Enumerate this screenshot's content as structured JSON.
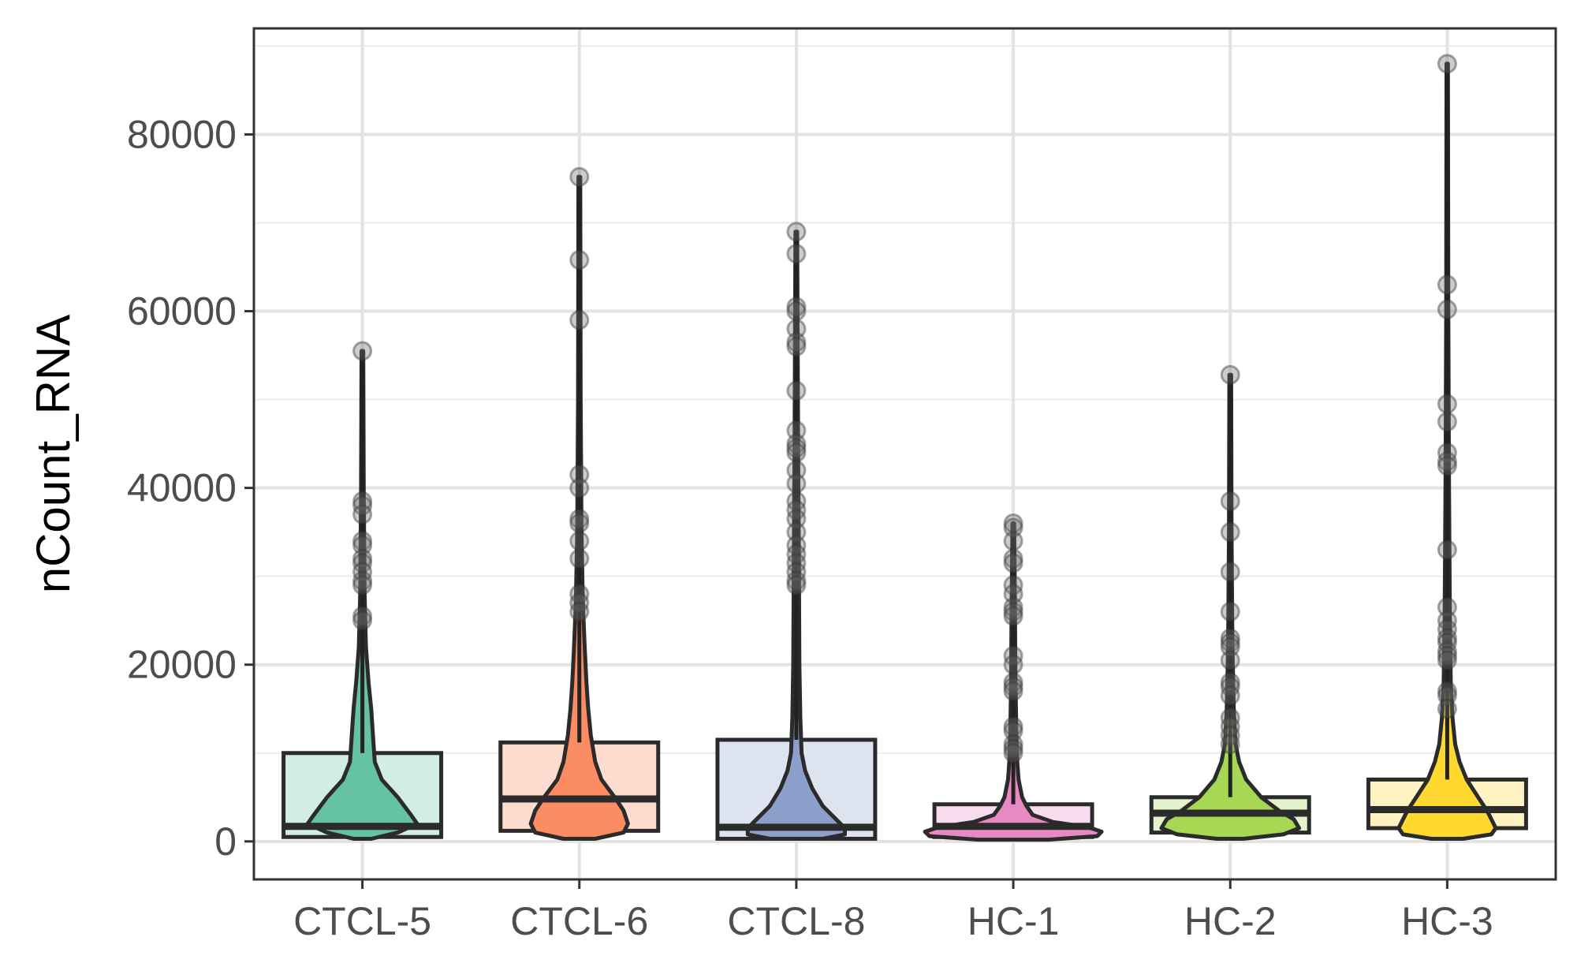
{
  "chart_data": {
    "type": "violin",
    "xlabel": "",
    "ylabel": "nCount_RNA",
    "ylim": [
      -4300,
      92000
    ],
    "yticks": [
      0,
      20000,
      40000,
      60000,
      80000
    ],
    "ytick_labels": [
      "0",
      "20000",
      "40000",
      "60000",
      "80000"
    ],
    "grid": true,
    "legend": "none",
    "categories": [
      "CTCL-5",
      "CTCL-6",
      "CTCL-8",
      "HC-1",
      "HC-2",
      "HC-3"
    ],
    "groups": [
      {
        "name": "CTCL-5",
        "color": "#66c2a5",
        "box": {
          "q1": 500,
          "median": 1700,
          "q3": 10000
        },
        "max": 55500,
        "outliers": [
          55500,
          38500,
          38000,
          37000,
          34000,
          33500,
          32000,
          31500,
          30500,
          29500,
          29000,
          25500,
          25000
        ],
        "density": [
          [
            300,
            0.1
          ],
          [
            1000,
            0.4
          ],
          [
            2000,
            0.62
          ],
          [
            3000,
            0.55
          ],
          [
            5000,
            0.4
          ],
          [
            7000,
            0.22
          ],
          [
            9000,
            0.14
          ],
          [
            12000,
            0.12
          ],
          [
            15000,
            0.1
          ],
          [
            18000,
            0.07
          ],
          [
            22000,
            0.04
          ],
          [
            28000,
            0.025
          ],
          [
            40000,
            0.015
          ],
          [
            55500,
            0.01
          ]
        ]
      },
      {
        "name": "CTCL-6",
        "color": "#fc8d62",
        "box": {
          "q1": 1200,
          "median": 4800,
          "q3": 11200
        },
        "max": 75200,
        "outliers": [
          75200,
          65800,
          59000,
          41500,
          40000,
          36500,
          36000,
          34000,
          32000,
          28000,
          27000,
          26000
        ],
        "density": [
          [
            300,
            0.18
          ],
          [
            1000,
            0.5
          ],
          [
            2000,
            0.55
          ],
          [
            3500,
            0.5
          ],
          [
            5000,
            0.4
          ],
          [
            7000,
            0.25
          ],
          [
            9000,
            0.18
          ],
          [
            12000,
            0.13
          ],
          [
            15000,
            0.1
          ],
          [
            18000,
            0.08
          ],
          [
            22000,
            0.06
          ],
          [
            27000,
            0.04
          ],
          [
            35000,
            0.025
          ],
          [
            50000,
            0.015
          ],
          [
            75200,
            0.01
          ]
        ]
      },
      {
        "name": "CTCL-8",
        "color": "#8da0cb",
        "box": {
          "q1": 300,
          "median": 1600,
          "q3": 11500
        },
        "max": 69000,
        "outliers": [
          69000,
          66500,
          60500,
          60000,
          58000,
          56500,
          56000,
          51000,
          46500,
          45000,
          44500,
          44000,
          42000,
          40500,
          38500,
          37500,
          36500,
          35000,
          33500,
          32500,
          31500,
          30500,
          29500,
          29000
        ],
        "density": [
          [
            300,
            0.3
          ],
          [
            800,
            0.55
          ],
          [
            1500,
            0.55
          ],
          [
            2500,
            0.45
          ],
          [
            4000,
            0.3
          ],
          [
            6000,
            0.18
          ],
          [
            8000,
            0.1
          ],
          [
            10000,
            0.06
          ],
          [
            14000,
            0.045
          ],
          [
            20000,
            0.035
          ],
          [
            30000,
            0.03
          ],
          [
            45000,
            0.02
          ],
          [
            69000,
            0.01
          ]
        ]
      },
      {
        "name": "HC-1",
        "color": "#e78ac3",
        "box": {
          "q1": 500,
          "median": 1700,
          "q3": 4200
        },
        "max": 36000,
        "outliers": [
          36000,
          35500,
          34000,
          32000,
          31500,
          29000,
          28000,
          26500,
          26000,
          25500,
          21000,
          20000,
          18000,
          17500,
          17000,
          13000,
          12500,
          11000,
          10500,
          10000
        ],
        "density": [
          [
            200,
            0.4
          ],
          [
            600,
            0.95
          ],
          [
            1100,
            1.0
          ],
          [
            1600,
            0.85
          ],
          [
            2200,
            0.45
          ],
          [
            3000,
            0.22
          ],
          [
            4000,
            0.15
          ],
          [
            5000,
            0.1
          ],
          [
            7000,
            0.06
          ],
          [
            9000,
            0.045
          ],
          [
            12000,
            0.035
          ],
          [
            18000,
            0.025
          ],
          [
            25000,
            0.02
          ],
          [
            36000,
            0.01
          ]
        ]
      },
      {
        "name": "HC-2",
        "color": "#a6d854",
        "box": {
          "q1": 1000,
          "median": 3200,
          "q3": 5000
        },
        "max": 52800,
        "outliers": [
          52800,
          38500,
          35000,
          30500,
          26000,
          23000,
          22500,
          22000,
          20500,
          18000,
          17500,
          16500,
          14000,
          13000,
          12000,
          11000
        ],
        "density": [
          [
            300,
            0.15
          ],
          [
            800,
            0.6
          ],
          [
            1500,
            0.78
          ],
          [
            2500,
            0.72
          ],
          [
            3500,
            0.55
          ],
          [
            5000,
            0.35
          ],
          [
            7000,
            0.18
          ],
          [
            9000,
            0.1
          ],
          [
            11000,
            0.06
          ],
          [
            15000,
            0.04
          ],
          [
            22000,
            0.025
          ],
          [
            35000,
            0.015
          ],
          [
            52800,
            0.01
          ]
        ]
      },
      {
        "name": "HC-3",
        "color": "#ffd92f",
        "box": {
          "q1": 1500,
          "median": 3600,
          "q3": 7000
        },
        "max": 88000,
        "outliers": [
          88000,
          63000,
          60200,
          49500,
          47500,
          44000,
          43000,
          42500,
          33000,
          26500,
          25000,
          24000,
          23000,
          22500,
          21500,
          21000,
          20500,
          17000,
          16500,
          15000
        ],
        "density": [
          [
            300,
            0.18
          ],
          [
            800,
            0.5
          ],
          [
            1500,
            0.55
          ],
          [
            2500,
            0.5
          ],
          [
            3500,
            0.45
          ],
          [
            5000,
            0.35
          ],
          [
            7000,
            0.22
          ],
          [
            9000,
            0.14
          ],
          [
            11000,
            0.09
          ],
          [
            14000,
            0.06
          ],
          [
            18000,
            0.04
          ],
          [
            25000,
            0.03
          ],
          [
            40000,
            0.02
          ],
          [
            60000,
            0.012
          ],
          [
            88000,
            0.008
          ]
        ]
      }
    ]
  }
}
